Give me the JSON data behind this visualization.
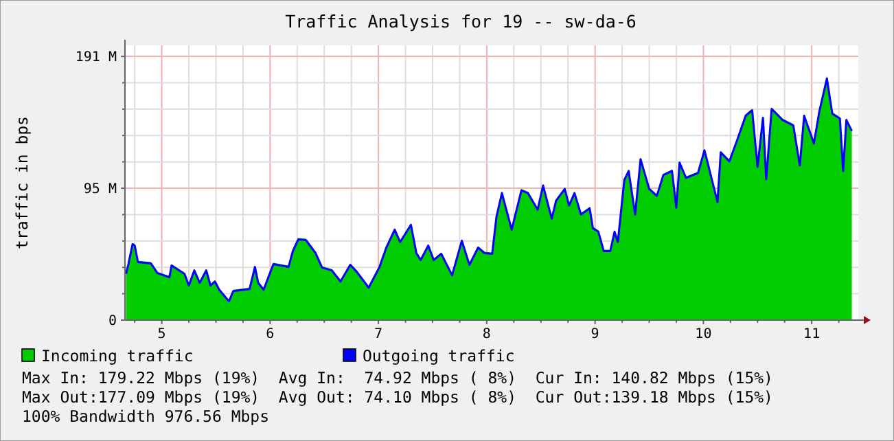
{
  "chart_data": {
    "type": "area",
    "title": "Traffic Analysis for 19 -- sw-da-6",
    "ylabel": "traffic in bps",
    "x": [
      4.67,
      4.69,
      4.73,
      4.75,
      4.78,
      4.9,
      4.96,
      5.07,
      5.09,
      5.21,
      5.25,
      5.3,
      5.35,
      5.41,
      5.45,
      5.49,
      5.53,
      5.62,
      5.66,
      5.81,
      5.86,
      5.89,
      5.94,
      6.03,
      6.17,
      6.21,
      6.26,
      6.33,
      6.42,
      6.48,
      6.57,
      6.65,
      6.74,
      6.8,
      6.91,
      7.01,
      7.07,
      7.15,
      7.2,
      7.3,
      7.35,
      7.39,
      7.46,
      7.51,
      7.58,
      7.68,
      7.77,
      7.84,
      7.92,
      7.98,
      8.05,
      8.09,
      8.14,
      8.23,
      8.32,
      8.38,
      8.47,
      8.52,
      8.6,
      8.64,
      8.72,
      8.76,
      8.81,
      8.87,
      8.95,
      8.98,
      9.03,
      9.08,
      9.14,
      9.18,
      9.21,
      9.27,
      9.31,
      9.37,
      9.42,
      9.5,
      9.57,
      9.63,
      9.71,
      9.75,
      9.78,
      9.84,
      9.95,
      10.01,
      10.1,
      10.13,
      10.16,
      10.24,
      10.31,
      10.39,
      10.45,
      10.5,
      10.55,
      10.58,
      10.63,
      10.73,
      10.83,
      10.89,
      10.93,
      11.02,
      11.07,
      11.14,
      11.19,
      11.26,
      11.29,
      11.32,
      11.37
    ],
    "series": [
      {
        "name": "Incoming traffic",
        "color": "#00cc00",
        "values": [
          34.5,
          41,
          56,
          55,
          43,
          42,
          35,
          32,
          40.5,
          34.5,
          26,
          37,
          28,
          37,
          26,
          29,
          23,
          14.6,
          22,
          23.5,
          39.5,
          28,
          23,
          41.5,
          39.5,
          51,
          59.5,
          59,
          49.5,
          39,
          37,
          29,
          41,
          36,
          24.5,
          39.5,
          53,
          66.5,
          57.5,
          70,
          49.5,
          44.5,
          55,
          44.5,
          49,
          33.5,
          58.5,
          41,
          53.5,
          49.5,
          49,
          76,
          93,
          66.5,
          95,
          93,
          81,
          98.5,
          74.5,
          87.5,
          96,
          84,
          93,
          77.5,
          82,
          67.5,
          65,
          51,
          51,
          65,
          57.5,
          102.5,
          109,
          77.5,
          117.5,
          96,
          91,
          106,
          109,
          82.5,
          115,
          104,
          107.5,
          124,
          96,
          86.5,
          122.5,
          116,
          131,
          149,
          153,
          112,
          147.5,
          103,
          154,
          146,
          142,
          113,
          149,
          129,
          152,
          177,
          150.5,
          147,
          109,
          146,
          138
        ]
      },
      {
        "name": "Outgoing traffic",
        "type": "line",
        "color": "#0000ff",
        "values": [
          33.5,
          40,
          55,
          54,
          42,
          41,
          34,
          31,
          39.5,
          33.5,
          25,
          36,
          27,
          36,
          25,
          28,
          22,
          13.6,
          21,
          22.5,
          38.5,
          27,
          22,
          40.5,
          38.5,
          50,
          58.5,
          58,
          48.5,
          38,
          36,
          28,
          40,
          35,
          23.5,
          38.5,
          52,
          65.5,
          56.5,
          69,
          48.5,
          43.5,
          54,
          43.5,
          48,
          32.5,
          57.5,
          40,
          52.5,
          48.5,
          48,
          75,
          92,
          65.5,
          94,
          92,
          80,
          97.5,
          73.5,
          86.5,
          95,
          83,
          92,
          76.5,
          81,
          66.5,
          64,
          50,
          50,
          64,
          56.5,
          101.5,
          108,
          76.5,
          116.5,
          95,
          90,
          105,
          108,
          81.5,
          114,
          103,
          106.5,
          123,
          95,
          85.5,
          121.5,
          115,
          130,
          148,
          152,
          111,
          146.5,
          102,
          153,
          145,
          141,
          112,
          148,
          128,
          151,
          175,
          149.5,
          146,
          108,
          145,
          137
        ]
      }
    ],
    "xlim": [
      4.66,
      11.43
    ],
    "xticks": [
      {
        "value": 4.75,
        "label": null
      },
      5,
      {
        "value": 5.25,
        "label": null
      },
      {
        "value": 5.5,
        "label": null
      },
      {
        "value": 5.75,
        "label": null
      },
      6,
      {
        "value": 6.25,
        "label": null
      },
      {
        "value": 6.5,
        "label": null
      },
      {
        "value": 6.75,
        "label": null
      },
      7,
      {
        "value": 7.25,
        "label": null
      },
      {
        "value": 7.5,
        "label": null
      },
      {
        "value": 7.75,
        "label": null
      },
      8,
      {
        "value": 8.25,
        "label": null
      },
      {
        "value": 8.5,
        "label": null
      },
      {
        "value": 8.75,
        "label": null
      },
      9,
      {
        "value": 9.25,
        "label": null
      },
      {
        "value": 9.5,
        "label": null
      },
      {
        "value": 9.75,
        "label": null
      },
      10,
      {
        "value": 10.25,
        "label": null
      },
      {
        "value": 10.5,
        "label": null
      },
      {
        "value": 10.75,
        "label": null
      },
      11,
      {
        "value": 11.25,
        "label": null
      }
    ],
    "ylim": [
      0,
      199
    ],
    "yticks": [
      {
        "value": 0,
        "label": "0"
      },
      {
        "value": 19.1,
        "label": null
      },
      {
        "value": 38.2,
        "label": null
      },
      {
        "value": 57.3,
        "label": null
      },
      {
        "value": 76.4,
        "label": null
      },
      {
        "value": 95.5,
        "label": "95 M"
      },
      {
        "value": 114.6,
        "label": null
      },
      {
        "value": 133.7,
        "label": null
      },
      {
        "value": 152.8,
        "label": null
      },
      {
        "value": 171.9,
        "label": null
      },
      {
        "value": 191,
        "label": "191 M"
      }
    ],
    "grid": true,
    "legend": "bottom left",
    "annotations": [
      "Max In: 179.22 Mbps (19%)  Avg In:  74.92 Mbps ( 8%)  Cur In: 140.82 Mbps (15%)",
      "Max Out:177.09 Mbps (19%)  Avg Out: 74.10 Mbps ( 8%)  Cur Out:139.18 Mbps (15%)",
      "100% Bandwidth 976.56 Mbps"
    ]
  }
}
